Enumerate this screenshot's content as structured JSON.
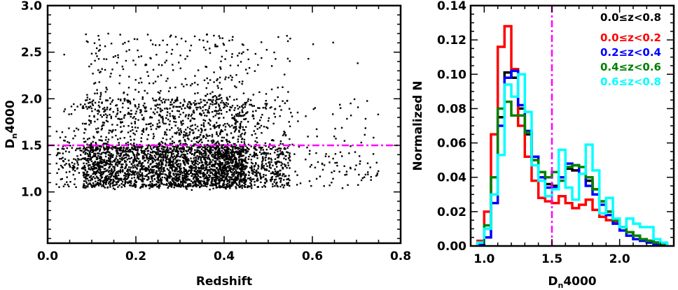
{
  "chart_data": [
    {
      "type": "scatter",
      "xlabel": "Redshift",
      "ylabel": "D_n4000",
      "ylabel_main": "D",
      "ylabel_sub": "n",
      "ylabel_rest": "4000",
      "xlim": [
        0.0,
        0.8
      ],
      "ylim": [
        0.45,
        3.0
      ],
      "xticks": [
        0.0,
        0.2,
        0.4,
        0.6,
        0.8
      ],
      "xtick_labels": [
        "0.0",
        "0.2",
        "0.4",
        "0.6",
        "0.8"
      ],
      "yticks": [
        1.0,
        1.5,
        2.0,
        2.5,
        3.0
      ],
      "ytick_labels": [
        "1.0",
        "1.5",
        "2.0",
        "2.5",
        "3.0"
      ],
      "x_minor_step": 0.05,
      "y_minor_step": 0.1,
      "point_color": "#000000",
      "reference_line": {
        "y": 1.5,
        "color": "#ff00ff",
        "style": "dash-dot"
      },
      "point_density": [
        {
          "z_range": [
            0.02,
            0.08
          ],
          "density": "low"
        },
        {
          "z_range": [
            0.08,
            0.13
          ],
          "density": "medium"
        },
        {
          "z_range": [
            0.13,
            0.25
          ],
          "density": "high"
        },
        {
          "z_range": [
            0.25,
            0.38
          ],
          "density": "very high"
        },
        {
          "z_range": [
            0.38,
            0.45
          ],
          "density": "high"
        },
        {
          "z_range": [
            0.45,
            0.55
          ],
          "density": "medium"
        },
        {
          "z_range": [
            0.55,
            0.75
          ],
          "density": "low"
        }
      ],
      "bulk_dn4000_range": [
        1.05,
        1.5
      ]
    },
    {
      "type": "line",
      "xlabel": "D_n4000",
      "xlabel_main": "D",
      "xlabel_sub": "n",
      "xlabel_rest": "4000",
      "ylabel": "Normalized N",
      "xlim": [
        0.9,
        2.4
      ],
      "ylim": [
        0.0,
        0.14
      ],
      "xticks": [
        1.0,
        1.5,
        2.0
      ],
      "xtick_labels": [
        "1.0",
        "1.5",
        "2.0"
      ],
      "yticks": [
        0.0,
        0.02,
        0.04,
        0.06,
        0.08,
        0.1,
        0.12,
        0.14
      ],
      "ytick_labels": [
        "0.00",
        "0.02",
        "0.04",
        "0.06",
        "0.08",
        "0.10",
        "0.12",
        "0.14"
      ],
      "x_minor_step": 0.1,
      "y_minor_step": 0.005,
      "reference_line": {
        "x": 1.5,
        "color": "#ff00ff",
        "style": "dash-dot"
      },
      "legend_position": "top-right",
      "bin_edges": [
        0.95,
        1.0,
        1.05,
        1.1,
        1.15,
        1.2,
        1.25,
        1.3,
        1.35,
        1.4,
        1.45,
        1.5,
        1.55,
        1.6,
        1.65,
        1.7,
        1.75,
        1.8,
        1.85,
        1.9,
        1.95,
        2.0,
        2.05,
        2.1,
        2.15,
        2.2,
        2.25,
        2.3,
        2.35
      ],
      "series": [
        {
          "name": "0.0≤z<0.8",
          "color": "#000000",
          "values": [
            0.002,
            0.01,
            0.03,
            0.075,
            0.101,
            0.098,
            0.08,
            0.065,
            0.05,
            0.04,
            0.036,
            0.035,
            0.04,
            0.045,
            0.044,
            0.042,
            0.038,
            0.033,
            0.026,
            0.02,
            0.015,
            0.011,
            0.008,
            0.006,
            0.004,
            0.003,
            0.002,
            0.001
          ]
        },
        {
          "name": "0.0≤z<0.2",
          "color": "#ff0000",
          "values": [
            0.003,
            0.02,
            0.065,
            0.116,
            0.128,
            0.103,
            0.07,
            0.052,
            0.038,
            0.028,
            0.026,
            0.025,
            0.029,
            0.025,
            0.022,
            0.024,
            0.027,
            0.021,
            0.017,
            0.015,
            0.014,
            0.011,
            0.008,
            0.006,
            0.004,
            0.003,
            0.002,
            0.001
          ]
        },
        {
          "name": "0.2≤z<0.4",
          "color": "#0000ff",
          "values": [
            0.001,
            0.005,
            0.025,
            0.07,
            0.098,
            0.102,
            0.082,
            0.067,
            0.052,
            0.04,
            0.034,
            0.034,
            0.04,
            0.048,
            0.047,
            0.042,
            0.035,
            0.03,
            0.024,
            0.018,
            0.013,
            0.009,
            0.006,
            0.004,
            0.003,
            0.002,
            0.001,
            0.001
          ]
        },
        {
          "name": "0.4≤z<0.6",
          "color": "#008000",
          "values": [
            0.002,
            0.012,
            0.04,
            0.08,
            0.084,
            0.076,
            0.076,
            0.066,
            0.05,
            0.043,
            0.04,
            0.043,
            0.038,
            0.046,
            0.047,
            0.046,
            0.04,
            0.033,
            0.026,
            0.02,
            0.015,
            0.011,
            0.008,
            0.006,
            0.004,
            0.003,
            0.002,
            0.001
          ]
        },
        {
          "name": "0.6≤z<0.8",
          "color": "#00ffff",
          "values": [
            0.002,
            0.01,
            0.03,
            0.053,
            0.094,
            0.087,
            0.1,
            0.078,
            0.047,
            0.038,
            0.029,
            0.033,
            0.056,
            0.034,
            0.027,
            0.042,
            0.059,
            0.044,
            0.019,
            0.028,
            0.016,
            0.011,
            0.016,
            0.013,
            0.011,
            0.011,
            0.004,
            0.002
          ]
        }
      ]
    }
  ]
}
